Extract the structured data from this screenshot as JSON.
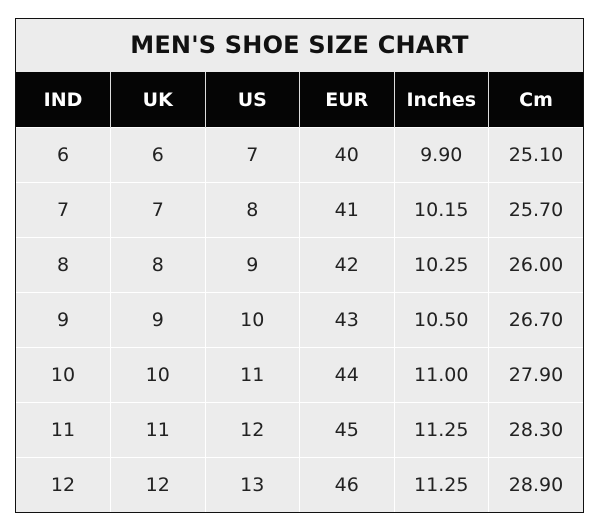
{
  "title": "MEN'S SHOE SIZE CHART",
  "columns": [
    "IND",
    "UK",
    "US",
    "EUR",
    "Inches",
    "Cm"
  ],
  "rows": [
    [
      "6",
      "6",
      "7",
      "40",
      "9.90",
      "25.10"
    ],
    [
      "7",
      "7",
      "8",
      "41",
      "10.15",
      "25.70"
    ],
    [
      "8",
      "8",
      "9",
      "42",
      "10.25",
      "26.00"
    ],
    [
      "9",
      "9",
      "10",
      "43",
      "10.50",
      "26.70"
    ],
    [
      "10",
      "10",
      "11",
      "44",
      "11.00",
      "27.90"
    ],
    [
      "11",
      "11",
      "12",
      "45",
      "11.25",
      "28.30"
    ],
    [
      "12",
      "12",
      "13",
      "46",
      "11.25",
      "28.90"
    ]
  ],
  "colors": {
    "header_bg": "#050505",
    "header_text": "#ffffff",
    "cell_bg": "#ececec",
    "grid": "#ffffff"
  }
}
